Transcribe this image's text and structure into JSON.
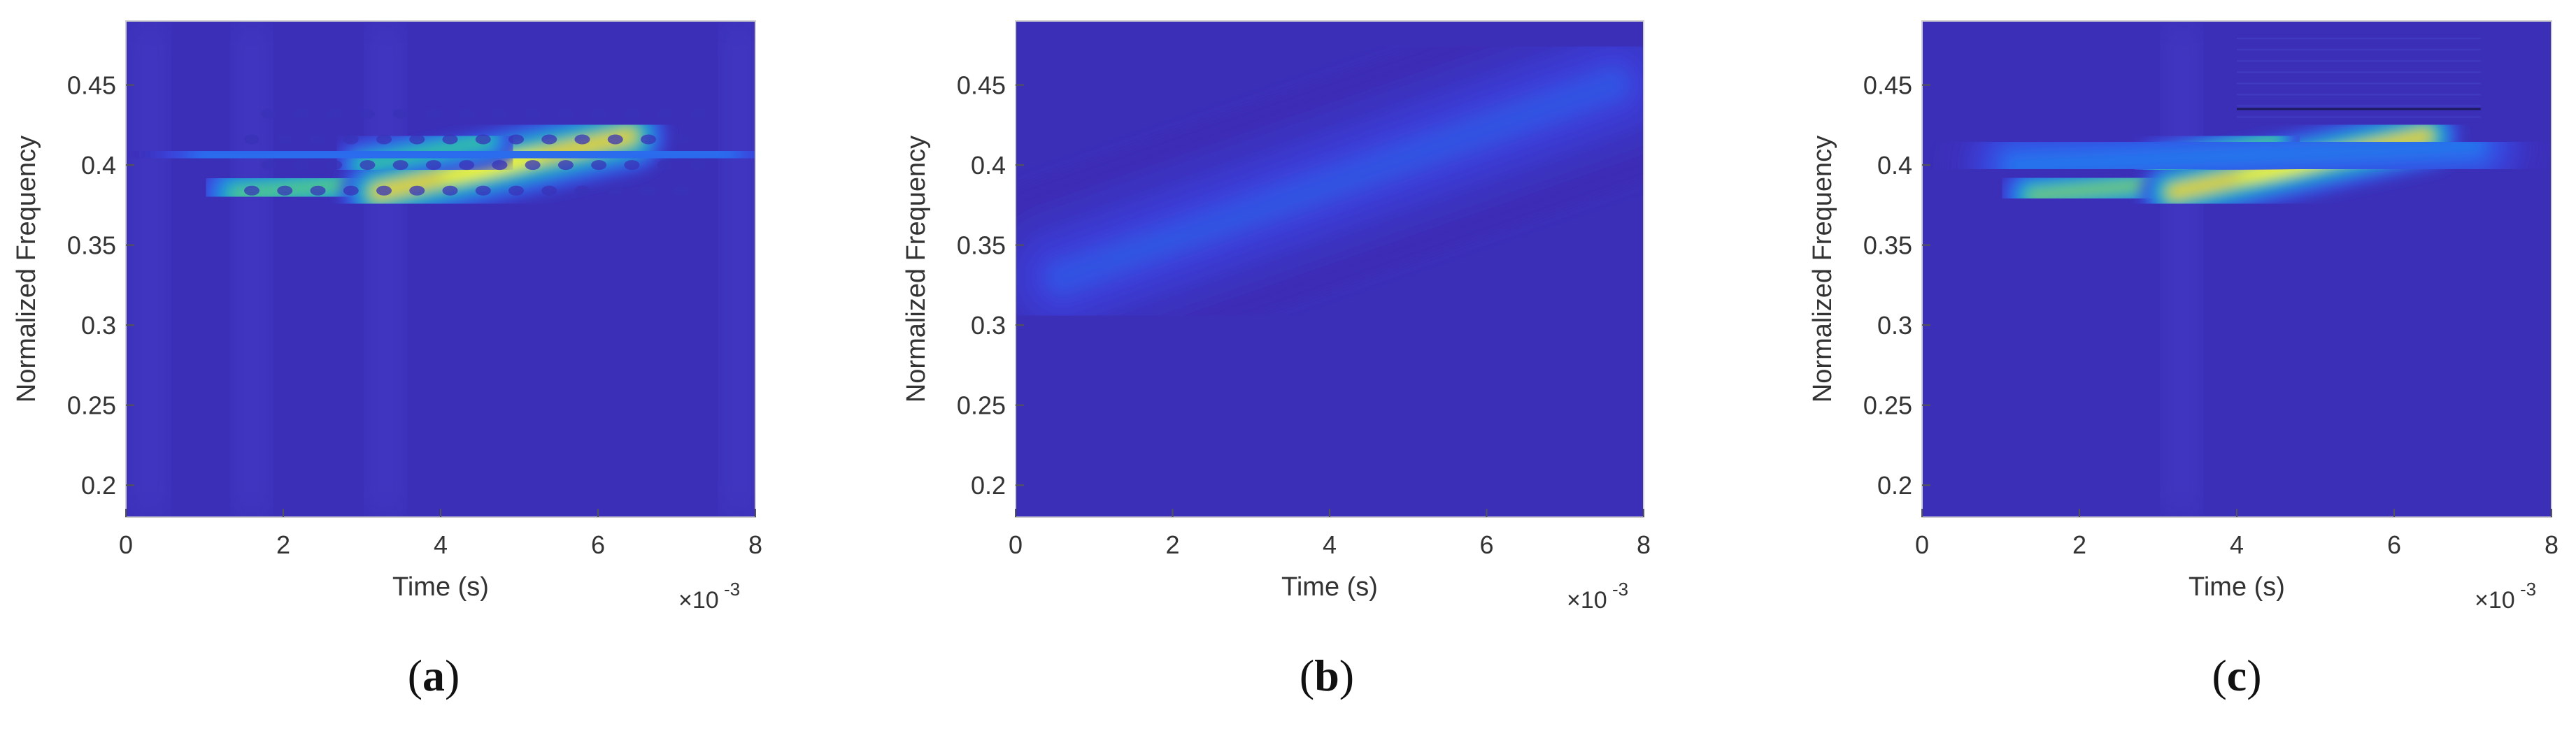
{
  "colors": {
    "background": "#3b2fb8",
    "colormap": [
      "#3e26a8",
      "#3b3fd8",
      "#2a6cf0",
      "#1f95d6",
      "#18b8b4",
      "#4cc98a",
      "#b5c843",
      "#f5c02a",
      "#f9fb15"
    ],
    "axis": "#555555",
    "text": "#333333"
  },
  "chart_data": [
    {
      "type": "heatmap",
      "panel_label": "a",
      "xlabel": "Time (s)",
      "ylabel": "Normalized Frequency",
      "x_exponent_label": "×10",
      "x_exponent_power": "-3",
      "xlim": [
        0,
        8
      ],
      "ylim": [
        0.18,
        0.49
      ],
      "x_ticks": [
        0,
        2,
        4,
        6,
        8
      ],
      "y_ticks": [
        0.2,
        0.25,
        0.3,
        0.35,
        0.4,
        0.45
      ],
      "components": [
        {
          "x0": 1.4,
          "y0": 0.382,
          "x1": 3.3,
          "y1": 0.39,
          "width": 0.012,
          "peak": 0.7
        },
        {
          "x0": 3.2,
          "y0": 0.383,
          "x1": 6.4,
          "y1": 0.418,
          "width": 0.011,
          "peak": 1.0
        },
        {
          "x0": 3.0,
          "y0": 0.4,
          "x1": 4.6,
          "y1": 0.415,
          "width": 0.009,
          "peak": 0.65
        },
        {
          "x0": 1.0,
          "y0": 0.405,
          "x1": 7.6,
          "y1": 0.408,
          "width": 0.025,
          "peak": 0.28
        }
      ],
      "interference_dots": true,
      "vertical_streaks": [
        0.3,
        1.6,
        3.3,
        7.8
      ]
    },
    {
      "type": "heatmap",
      "panel_label": "b",
      "xlabel": "Time (s)",
      "ylabel": "Normalized Frequency",
      "x_exponent_label": "×10",
      "x_exponent_power": "-3",
      "xlim": [
        0,
        8
      ],
      "ylim": [
        0.18,
        0.49
      ],
      "x_ticks": [
        0,
        2,
        4,
        6,
        8
      ],
      "y_ticks": [
        0.2,
        0.25,
        0.3,
        0.35,
        0.4,
        0.45
      ],
      "components": [
        {
          "x0": 1.3,
          "y0": 0.342,
          "x1": 6.2,
          "y1": 0.418,
          "width": 0.01,
          "peak": 1.0
        },
        {
          "x0": 1.4,
          "y0": 0.372,
          "x1": 6.6,
          "y1": 0.447,
          "width": 0.01,
          "peak": 0.62
        },
        {
          "x0": 0.6,
          "y0": 0.33,
          "x1": 7.6,
          "y1": 0.45,
          "width": 0.03,
          "peak": 0.2
        }
      ],
      "interference_dots": false,
      "vertical_streaks": []
    },
    {
      "type": "heatmap",
      "panel_label": "c",
      "xlabel": "Time (s)",
      "ylabel": "Normalized Frequency",
      "x_exponent_label": "×10",
      "x_exponent_power": "-3",
      "xlim": [
        0,
        8
      ],
      "ylim": [
        0.18,
        0.49
      ],
      "x_ticks": [
        0,
        2,
        4,
        6,
        8
      ],
      "y_ticks": [
        0.2,
        0.25,
        0.3,
        0.35,
        0.4,
        0.45
      ],
      "components": [
        {
          "x0": 1.4,
          "y0": 0.381,
          "x1": 3.3,
          "y1": 0.39,
          "width": 0.01,
          "peak": 0.75
        },
        {
          "x0": 3.2,
          "y0": 0.383,
          "x1": 6.4,
          "y1": 0.418,
          "width": 0.01,
          "peak": 1.0
        },
        {
          "x0": 3.0,
          "y0": 0.4,
          "x1": 4.5,
          "y1": 0.415,
          "width": 0.008,
          "peak": 0.7
        },
        {
          "x0": 1.2,
          "y0": 0.4,
          "x1": 7.0,
          "y1": 0.412,
          "width": 0.022,
          "peak": 0.3
        }
      ],
      "interference_dots": false,
      "vertical_streaks": [
        3.3
      ],
      "horizontal_line": 0.435
    }
  ]
}
